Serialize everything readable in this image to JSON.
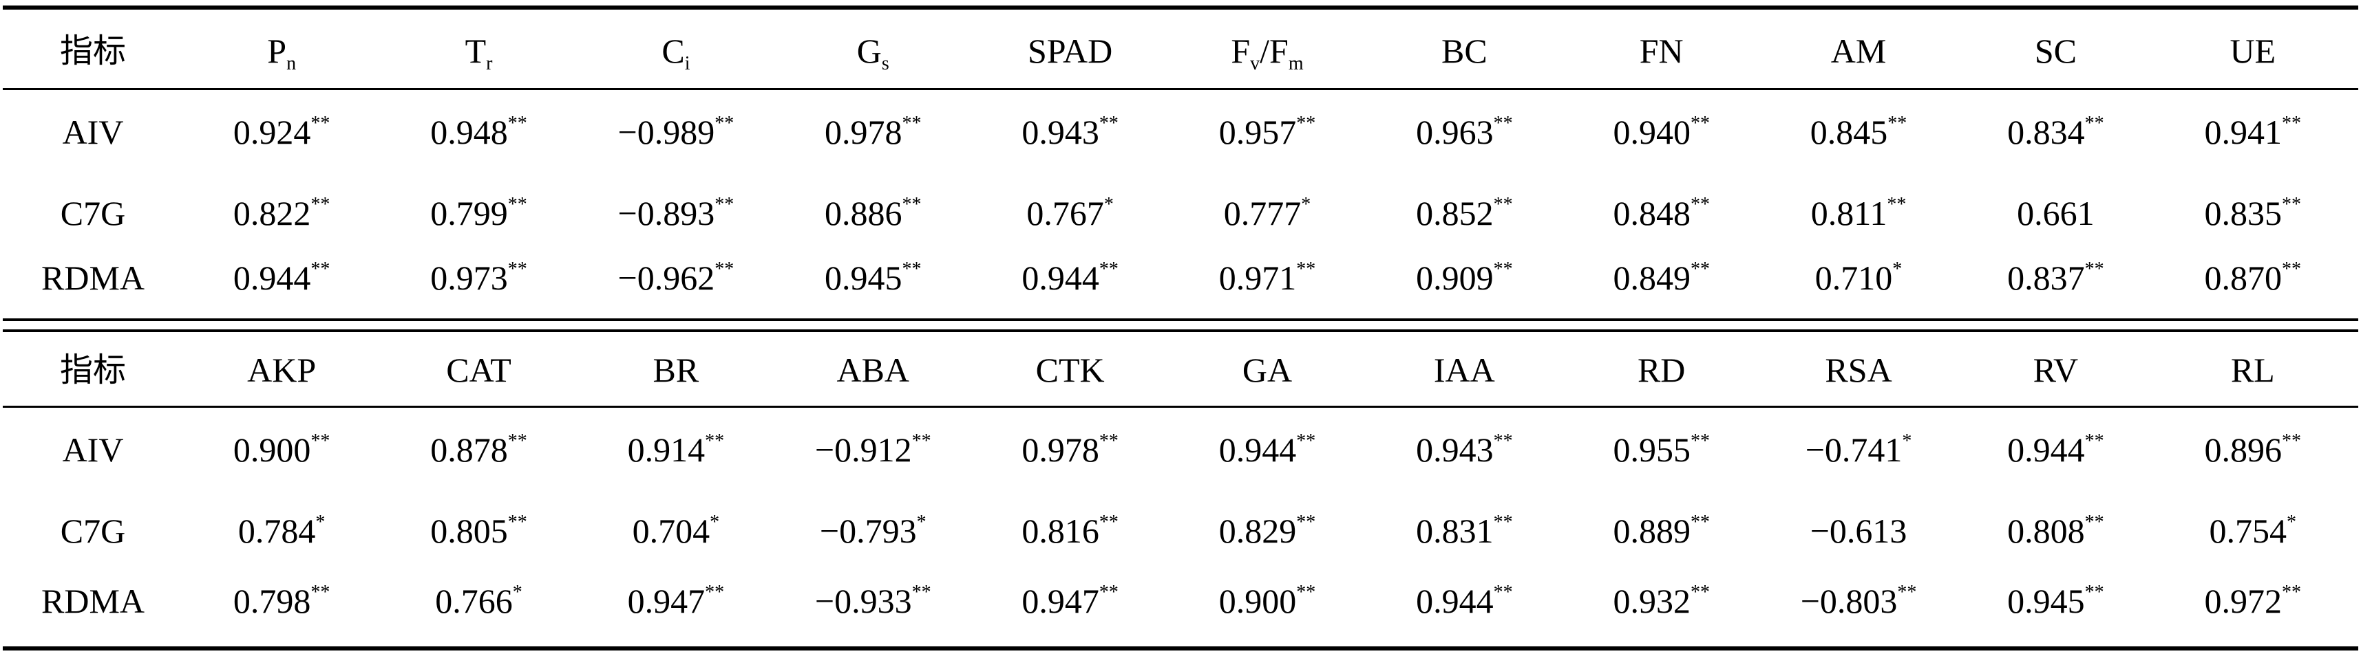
{
  "table1": {
    "header": [
      {
        "main": "指标",
        "sub": ""
      },
      {
        "main": "P",
        "sub": "n"
      },
      {
        "main": "T",
        "sub": "r"
      },
      {
        "main": "C",
        "sub": "i"
      },
      {
        "main": "G",
        "sub": "s"
      },
      {
        "main": "SPAD",
        "sub": ""
      },
      {
        "main": "F",
        "sub": "v",
        "main2": "/F",
        "sub2": "m"
      },
      {
        "main": "BC",
        "sub": ""
      },
      {
        "main": "FN",
        "sub": ""
      },
      {
        "main": "AM",
        "sub": ""
      },
      {
        "main": "SC",
        "sub": ""
      },
      {
        "main": "UE",
        "sub": ""
      }
    ],
    "rows": [
      {
        "label": "AIV",
        "cells": [
          {
            "v": "0.924",
            "s": "**"
          },
          {
            "v": "0.948",
            "s": "**"
          },
          {
            "v": "−0.989",
            "s": "**"
          },
          {
            "v": "0.978",
            "s": "**"
          },
          {
            "v": "0.943",
            "s": "**"
          },
          {
            "v": "0.957",
            "s": "**"
          },
          {
            "v": "0.963",
            "s": "**"
          },
          {
            "v": "0.940",
            "s": "**"
          },
          {
            "v": "0.845",
            "s": "**"
          },
          {
            "v": "0.834",
            "s": "**"
          },
          {
            "v": "0.941",
            "s": "**"
          }
        ]
      },
      {
        "label": "C7G",
        "cells": [
          {
            "v": "0.822",
            "s": "**"
          },
          {
            "v": "0.799",
            "s": "**"
          },
          {
            "v": "−0.893",
            "s": "**"
          },
          {
            "v": "0.886",
            "s": "**"
          },
          {
            "v": "0.767",
            "s": "*"
          },
          {
            "v": "0.777",
            "s": "*"
          },
          {
            "v": "0.852",
            "s": "**"
          },
          {
            "v": "0.848",
            "s": "**"
          },
          {
            "v": "0.811",
            "s": "**"
          },
          {
            "v": "0.661",
            "s": ""
          },
          {
            "v": "0.835",
            "s": "**"
          }
        ]
      },
      {
        "label": "RDMA",
        "cells": [
          {
            "v": "0.944",
            "s": "**"
          },
          {
            "v": "0.973",
            "s": "**"
          },
          {
            "v": "−0.962",
            "s": "**"
          },
          {
            "v": "0.945",
            "s": "**"
          },
          {
            "v": "0.944",
            "s": "**"
          },
          {
            "v": "0.971",
            "s": "**"
          },
          {
            "v": "0.909",
            "s": "**"
          },
          {
            "v": "0.849",
            "s": "**"
          },
          {
            "v": "0.710",
            "s": "*"
          },
          {
            "v": "0.837",
            "s": "**"
          },
          {
            "v": "0.870",
            "s": "**"
          }
        ]
      }
    ]
  },
  "table2": {
    "header": [
      {
        "main": "指标"
      },
      {
        "main": "AKP"
      },
      {
        "main": "CAT"
      },
      {
        "main": "BR"
      },
      {
        "main": "ABA"
      },
      {
        "main": "CTK"
      },
      {
        "main": "GA"
      },
      {
        "main": "IAA"
      },
      {
        "main": "RD"
      },
      {
        "main": "RSA"
      },
      {
        "main": "RV"
      },
      {
        "main": "RL"
      }
    ],
    "rows": [
      {
        "label": "AIV",
        "cells": [
          {
            "v": "0.900",
            "s": "**"
          },
          {
            "v": "0.878",
            "s": "**"
          },
          {
            "v": "0.914",
            "s": "**"
          },
          {
            "v": "−0.912",
            "s": "**"
          },
          {
            "v": "0.978",
            "s": "**"
          },
          {
            "v": "0.944",
            "s": "**"
          },
          {
            "v": "0.943",
            "s": "**"
          },
          {
            "v": "0.955",
            "s": "**"
          },
          {
            "v": "−0.741",
            "s": "*"
          },
          {
            "v": "0.944",
            "s": "**"
          },
          {
            "v": "0.896",
            "s": "**"
          }
        ]
      },
      {
        "label": "C7G",
        "cells": [
          {
            "v": "0.784",
            "s": "*"
          },
          {
            "v": "0.805",
            "s": "**"
          },
          {
            "v": "0.704",
            "s": "*"
          },
          {
            "v": "−0.793",
            "s": "*"
          },
          {
            "v": "0.816",
            "s": "**"
          },
          {
            "v": "0.829",
            "s": "**"
          },
          {
            "v": "0.831",
            "s": "**"
          },
          {
            "v": "0.889",
            "s": "**"
          },
          {
            "v": "−0.613",
            "s": ""
          },
          {
            "v": "0.808",
            "s": "**"
          },
          {
            "v": "0.754",
            "s": "*"
          }
        ]
      },
      {
        "label": "RDMA",
        "cells": [
          {
            "v": "0.798",
            "s": "**"
          },
          {
            "v": "0.766",
            "s": "*"
          },
          {
            "v": "0.947",
            "s": "**"
          },
          {
            "v": "−0.933",
            "s": "**"
          },
          {
            "v": "0.947",
            "s": "**"
          },
          {
            "v": "0.900",
            "s": "**"
          },
          {
            "v": "0.944",
            "s": "**"
          },
          {
            "v": "0.932",
            "s": "**"
          },
          {
            "v": "−0.803",
            "s": "**"
          },
          {
            "v": "0.945",
            "s": "**"
          },
          {
            "v": "0.972",
            "s": "**"
          }
        ]
      }
    ]
  }
}
